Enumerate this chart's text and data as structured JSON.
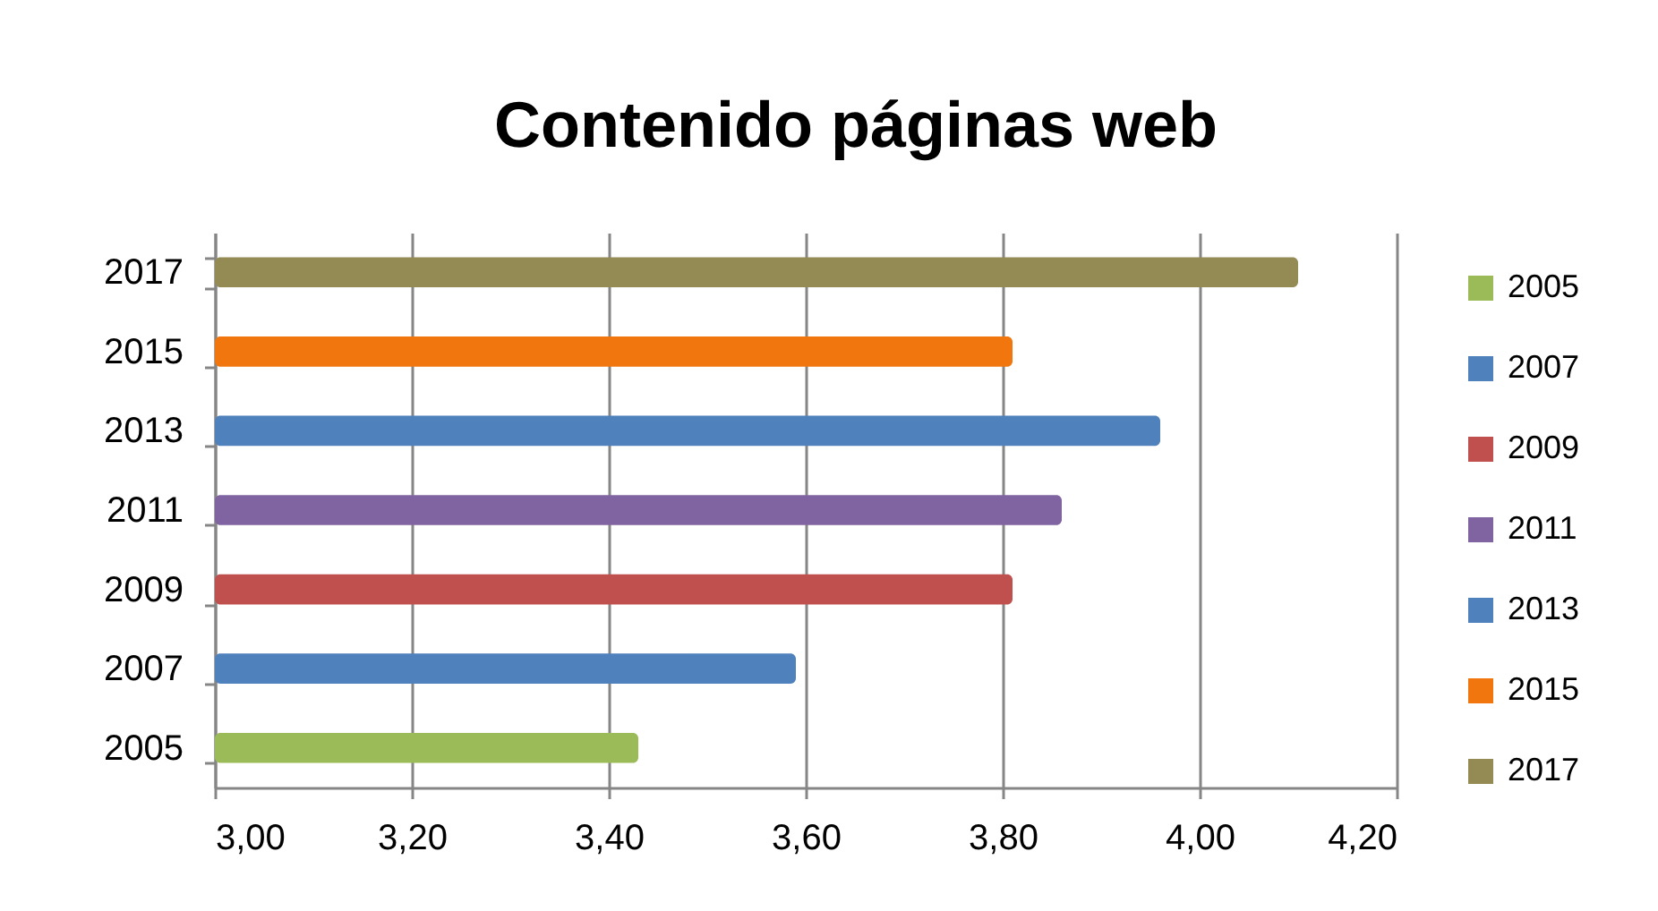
{
  "chart_data": {
    "type": "bar",
    "title": "Contenido páginas web",
    "orientation": "horizontal",
    "categories": [
      "2017",
      "2015",
      "2013",
      "2011",
      "2009",
      "2007",
      "2005"
    ],
    "series": [
      {
        "name": "2005",
        "color": "#9bbb59",
        "values": [
          null,
          null,
          null,
          null,
          null,
          null,
          3.43
        ]
      },
      {
        "name": "2007",
        "color": "#4f81bd",
        "values": [
          null,
          null,
          null,
          null,
          null,
          3.59,
          null
        ]
      },
      {
        "name": "2009",
        "color": "#c0504d",
        "values": [
          null,
          null,
          null,
          null,
          3.81,
          null,
          null
        ]
      },
      {
        "name": "2011",
        "color": "#8064a2",
        "values": [
          null,
          null,
          null,
          3.86,
          null,
          null,
          null
        ]
      },
      {
        "name": "2013",
        "color": "#4f81bd",
        "values": [
          null,
          null,
          3.96,
          null,
          null,
          null,
          null
        ]
      },
      {
        "name": "2015",
        "color": "#f0760d",
        "values": [
          null,
          3.81,
          null,
          null,
          null,
          null,
          null
        ]
      },
      {
        "name": "2017",
        "color": "#948a54",
        "values": [
          4.1,
          null,
          null,
          null,
          null,
          null,
          null
        ]
      }
    ],
    "xlim": [
      3,
      4.2
    ],
    "xticks": [
      {
        "value": 3,
        "label": "3,00"
      },
      {
        "value": 3.2,
        "label": "3,20"
      },
      {
        "value": 3.4,
        "label": "3,40"
      },
      {
        "value": 3.6,
        "label": "3,60"
      },
      {
        "value": 3.8,
        "label": "3,80"
      },
      {
        "value": 4,
        "label": "4,00"
      },
      {
        "value": 4.2,
        "label": "4,20"
      }
    ],
    "grid": "x",
    "legend": "right"
  }
}
